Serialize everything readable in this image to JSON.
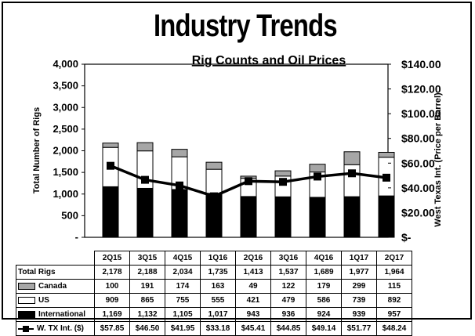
{
  "title": "Industry Trends",
  "chart_data": {
    "type": "bar",
    "subtitle": "Rig Counts and Oil Prices",
    "categories": [
      "2Q15",
      "3Q15",
      "4Q15",
      "1Q16",
      "2Q16",
      "3Q16",
      "4Q16",
      "1Q17",
      "2Q17"
    ],
    "series": [
      {
        "name": "International",
        "kind": "stacked-bar",
        "color": "#000000",
        "values": [
          1169,
          1132,
          1105,
          1017,
          943,
          936,
          924,
          939,
          957
        ],
        "labels": [
          "1,169",
          "1,132",
          "1,105",
          "1,017",
          "943",
          "936",
          "924",
          "939",
          "957"
        ]
      },
      {
        "name": "US",
        "kind": "stacked-bar",
        "color": "#ffffff",
        "values": [
          909,
          865,
          755,
          555,
          421,
          479,
          586,
          739,
          892
        ],
        "labels": [
          "909",
          "865",
          "755",
          "555",
          "421",
          "479",
          "586",
          "739",
          "892"
        ]
      },
      {
        "name": "Canada",
        "kind": "stacked-bar",
        "color": "#a6a6a6",
        "values": [
          100,
          191,
          174,
          163,
          49,
          122,
          179,
          299,
          115
        ],
        "labels": [
          "100",
          "191",
          "174",
          "163",
          "49",
          "122",
          "179",
          "299",
          "115"
        ]
      },
      {
        "name": "W. TX Int. ($)",
        "kind": "line",
        "axis": "right",
        "color": "#000000",
        "values": [
          57.85,
          46.5,
          41.95,
          33.18,
          45.41,
          44.85,
          49.14,
          51.77,
          48.24
        ],
        "labels": [
          "$57.85",
          "$46.50",
          "$41.95",
          "$33.18",
          "$45.41",
          "$44.85",
          "$49.14",
          "$51.77",
          "$48.24"
        ]
      }
    ],
    "totals": {
      "name": "Total Rigs",
      "values": [
        2178,
        2188,
        2034,
        1735,
        1413,
        1537,
        1689,
        1977,
        1964
      ],
      "labels": [
        "2,178",
        "2,188",
        "2,034",
        "1,735",
        "1,413",
        "1,537",
        "1,689",
        "1,977",
        "1,964"
      ]
    },
    "ylabel": "Total Number of Rigs",
    "y2label": "West Texas Int. (Price per Barrel)",
    "ylim": [
      0,
      4000
    ],
    "y2lim": [
      0,
      140
    ],
    "yticks": [
      0,
      500,
      1000,
      1500,
      2000,
      2500,
      3000,
      3500,
      4000
    ],
    "ytick_labels": [
      "-",
      "500",
      "1,000",
      "1,500",
      "2,000",
      "2,500",
      "3,000",
      "3,500",
      "4,000"
    ],
    "y2ticks": [
      0,
      20,
      40,
      60,
      80,
      100,
      120,
      140
    ],
    "y2tick_labels": [
      "$-",
      "$20.00",
      "$40.00",
      "$60.00",
      "$80.00",
      "$100.00",
      "$120.00",
      "$140.00"
    ],
    "grid": false,
    "legend": "data-table"
  }
}
